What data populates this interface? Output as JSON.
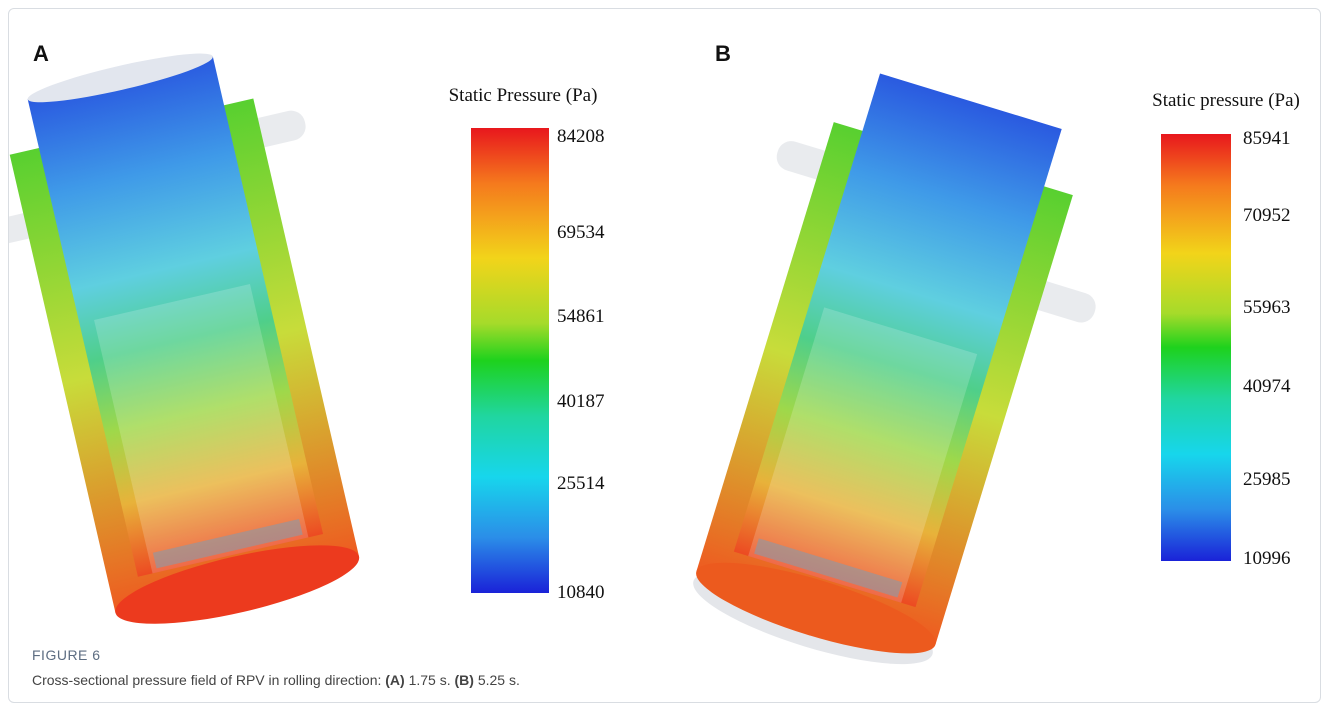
{
  "panels": [
    {
      "label": "A",
      "colorbar": {
        "title": "Static Pressure (Pa)",
        "ticks": [
          "84208",
          "69534",
          "54861",
          "40187",
          "25514",
          "10840"
        ]
      }
    },
    {
      "label": "B",
      "colorbar": {
        "title": "Static pressure (Pa)",
        "ticks": [
          "85941",
          "70952",
          "55963",
          "40974",
          "25985",
          "10996"
        ]
      }
    }
  ],
  "caption": {
    "label": "FIGURE 6",
    "parts": [
      "Cross-sectional pressure field of RPV in rolling direction: ",
      "(A)",
      " 1.75 s. ",
      "(B)",
      " 5.25 s."
    ]
  }
}
